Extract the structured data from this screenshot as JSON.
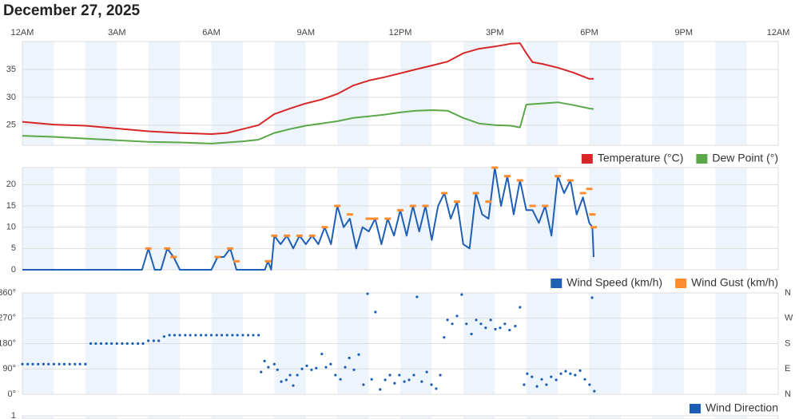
{
  "title": "December 27, 2025",
  "chart_data": [
    {
      "type": "line",
      "xlim": [
        0,
        24
      ],
      "xticks": [
        {
          "value": 0,
          "label": "12AM"
        },
        {
          "value": 3,
          "label": "3AM"
        },
        {
          "value": 6,
          "label": "6AM"
        },
        {
          "value": 9,
          "label": "9AM"
        },
        {
          "value": 12,
          "label": "12PM"
        },
        {
          "value": 15,
          "label": "3PM"
        },
        {
          "value": 18,
          "label": "6PM"
        },
        {
          "value": 21,
          "label": "9PM"
        },
        {
          "value": 24,
          "label": "12AM"
        }
      ],
      "ylim": [
        21.4,
        40
      ],
      "yticks": [
        25,
        30,
        35
      ],
      "grid": true,
      "series": [
        {
          "name": "Temperature (°C)",
          "color": "#d62728",
          "x": [
            0,
            1,
            2,
            3,
            4,
            5,
            6,
            6.5,
            7,
            7.5,
            8,
            8.5,
            9,
            9.5,
            10,
            10.5,
            11,
            11.5,
            12,
            12.5,
            13,
            13.5,
            14,
            14.5,
            15,
            15.5,
            15.8,
            16,
            16.2,
            16.5,
            17,
            17.5,
            18,
            18.14
          ],
          "values": [
            25.6,
            25.1,
            24.9,
            24.4,
            23.9,
            23.6,
            23.4,
            23.6,
            24.3,
            25,
            27,
            28,
            28.9,
            29.6,
            30.6,
            32.1,
            33,
            33.6,
            34.3,
            35,
            35.7,
            36.4,
            37.9,
            38.7,
            39.1,
            39.6,
            39.7,
            37.9,
            36.3,
            36,
            35.3,
            34.4,
            33.3,
            33.3
          ]
        },
        {
          "name": "Dew Point (°)",
          "color": "#5aa84a",
          "x": [
            0,
            1,
            2,
            3,
            4,
            5,
            6,
            7,
            7.5,
            8,
            8.5,
            9,
            9.5,
            10,
            10.5,
            11,
            11.5,
            12,
            12.5,
            13,
            13.5,
            14,
            14.5,
            15,
            15.5,
            15.8,
            16,
            16.5,
            17,
            17.5,
            18,
            18.14
          ],
          "values": [
            23.1,
            22.9,
            22.6,
            22.3,
            22,
            21.9,
            21.7,
            22.1,
            22.4,
            23.6,
            24.3,
            24.9,
            25.3,
            25.7,
            26.3,
            26.6,
            26.9,
            27.3,
            27.6,
            27.7,
            27.6,
            26.3,
            25.3,
            25,
            24.9,
            24.6,
            28.7,
            28.9,
            29.1,
            28.6,
            28,
            27.9
          ]
        }
      ]
    },
    {
      "type": "line",
      "xlim": [
        0,
        24
      ],
      "ylim": [
        0,
        24
      ],
      "yticks": [
        0,
        5,
        10,
        15,
        20
      ],
      "grid": true,
      "series": [
        {
          "name": "Wind Speed (km/h)",
          "color": "#1f5fb4",
          "line": true,
          "x": [
            0,
            3.8,
            4,
            4.2,
            4.4,
            4.6,
            4.8,
            5,
            6,
            6.2,
            6.4,
            6.6,
            6.8,
            7,
            7.7,
            7.8,
            7.9,
            8,
            8.2,
            8.4,
            8.6,
            8.8,
            9,
            9.2,
            9.4,
            9.6,
            9.8,
            10,
            10.2,
            10.4,
            10.6,
            10.8,
            11,
            11.2,
            11.4,
            11.6,
            11.8,
            12,
            12.2,
            12.4,
            12.6,
            12.8,
            13,
            13.2,
            13.4,
            13.6,
            13.8,
            14,
            14.2,
            14.4,
            14.6,
            14.8,
            15,
            15.2,
            15.4,
            15.6,
            15.8,
            16,
            16.2,
            16.4,
            16.6,
            16.8,
            17,
            17.2,
            17.4,
            17.6,
            17.8,
            18,
            18.1,
            18.14
          ],
          "values": [
            0,
            0,
            5,
            0,
            0,
            5,
            3,
            0,
            0,
            3,
            3,
            5,
            0,
            0,
            0,
            2,
            0,
            8,
            6,
            8,
            5,
            8,
            6,
            8,
            6,
            10,
            6,
            15,
            10,
            12,
            5,
            10,
            9,
            12,
            6,
            12,
            8,
            14,
            8,
            15,
            9,
            15,
            7,
            15,
            18,
            12,
            16,
            6,
            5,
            18,
            13,
            12,
            24,
            15,
            22,
            13,
            21,
            14,
            14,
            11,
            15,
            8,
            22,
            18,
            21,
            13,
            17,
            11,
            10,
            3
          ]
        },
        {
          "name": "Wind Gust (km/h)",
          "color": "#ff8c2e",
          "line": false,
          "x": [
            4,
            4.6,
            4.8,
            6.2,
            6.6,
            6.8,
            7.8,
            8,
            8.4,
            8.8,
            9.2,
            9.6,
            10,
            10.4,
            11,
            11.2,
            11.6,
            12,
            12.4,
            12.8,
            13.4,
            13.8,
            14.4,
            14.8,
            15,
            15.4,
            15.8,
            16.2,
            16.6,
            17,
            17.4,
            17.8,
            18,
            18.1,
            18.14
          ],
          "values": [
            5,
            5,
            3,
            3,
            5,
            2,
            2,
            8,
            8,
            8,
            8,
            10,
            15,
            13,
            12,
            12,
            12,
            14,
            15,
            15,
            18,
            16,
            18,
            16,
            24,
            22,
            21,
            15,
            15,
            22,
            21,
            18,
            19,
            13,
            10
          ]
        }
      ]
    },
    {
      "type": "scatter",
      "xlim": [
        0,
        24
      ],
      "ylim": [
        0,
        360
      ],
      "yticks": [
        {
          "value": 0,
          "label": "0°"
        },
        {
          "value": 90,
          "label": "90°"
        },
        {
          "value": 180,
          "label": "180°"
        },
        {
          "value": 270,
          "label": "270°"
        },
        {
          "value": 360,
          "label": "360°"
        }
      ],
      "y2lim": [
        0,
        360
      ],
      "y2ticks": [
        {
          "value": 0,
          "label": "N"
        },
        {
          "value": 90,
          "label": "E"
        },
        {
          "value": 180,
          "label": "S"
        },
        {
          "value": 270,
          "label": "W"
        },
        {
          "value": 360,
          "label": "N"
        }
      ],
      "grid": true,
      "series": [
        {
          "name": "Wind Direction",
          "color": "#1a5fb4",
          "x": [
            0,
            0.17,
            0.33,
            0.5,
            0.67,
            0.83,
            1,
            1.17,
            1.33,
            1.5,
            1.67,
            1.83,
            2,
            2.17,
            2.33,
            2.5,
            2.67,
            2.83,
            3,
            3.17,
            3.33,
            3.5,
            3.67,
            3.83,
            4,
            4.17,
            4.33,
            4.5,
            4.67,
            4.83,
            5,
            5.17,
            5.33,
            5.5,
            5.67,
            5.83,
            6,
            6.17,
            6.33,
            6.5,
            6.67,
            6.83,
            7,
            7.17,
            7.33,
            7.5,
            7.58,
            7.69,
            7.81,
            8,
            8.1,
            8.22,
            8.38,
            8.5,
            8.6,
            8.73,
            8.88,
            9.03,
            9.18,
            9.33,
            9.51,
            9.64,
            9.79,
            9.94,
            10.1,
            10.25,
            10.38,
            10.53,
            10.68,
            10.83,
            10.96,
            11.09,
            11.21,
            11.36,
            11.52,
            11.67,
            11.82,
            11.97,
            12.13,
            12.28,
            12.43,
            12.53,
            12.68,
            12.84,
            12.99,
            13.14,
            13.27,
            13.39,
            13.5,
            13.65,
            13.8,
            13.95,
            14.1,
            14.26,
            14.41,
            14.56,
            14.71,
            14.87,
            15.02,
            15.17,
            15.32,
            15.47,
            15.65,
            15.8,
            15.93,
            16.03,
            16.18,
            16.34,
            16.49,
            16.64,
            16.79,
            16.95,
            17.1,
            17.25,
            17.4,
            17.55,
            17.71,
            17.86,
            18.01,
            18.09,
            18.16
          ],
          "values": [
            107,
            107,
            107,
            107,
            107,
            107,
            107,
            107,
            107,
            107,
            107,
            107,
            107,
            180,
            180,
            180,
            180,
            180,
            180,
            180,
            180,
            180,
            180,
            180,
            190,
            190,
            190,
            205,
            210,
            210,
            210,
            210,
            210,
            210,
            210,
            210,
            210,
            210,
            210,
            210,
            210,
            210,
            210,
            210,
            210,
            210,
            79,
            118,
            96,
            107,
            87,
            45,
            51,
            68,
            31,
            68,
            90,
            101,
            87,
            93,
            143,
            96,
            107,
            68,
            53,
            96,
            129,
            87,
            141,
            34,
            357,
            53,
            292,
            17,
            51,
            68,
            39,
            68,
            45,
            51,
            68,
            346,
            45,
            79,
            34,
            20,
            68,
            202,
            264,
            250,
            278,
            354,
            250,
            214,
            264,
            250,
            236,
            264,
            231,
            236,
            250,
            228,
            242,
            309,
            34,
            73,
            62,
            28,
            53,
            34,
            62,
            51,
            73,
            82,
            73,
            68,
            84,
            53,
            34,
            343,
            11
          ]
        }
      ]
    },
    {
      "type": "line",
      "xlim": [
        0,
        24
      ],
      "ylim": [
        0,
        1
      ],
      "yticks": [
        1
      ],
      "grid": true
    }
  ]
}
